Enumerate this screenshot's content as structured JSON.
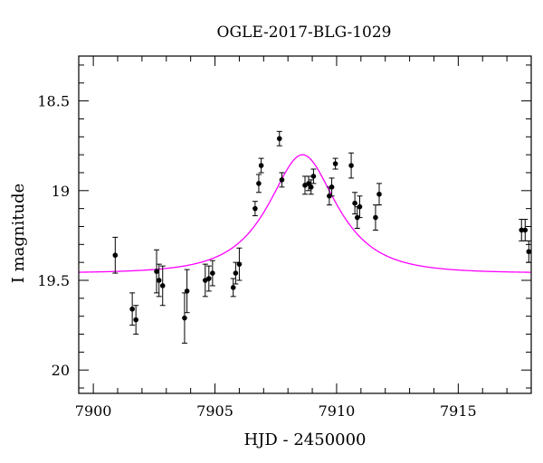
{
  "chart_data": {
    "type": "scatter",
    "title": "OGLE-2017-BLG-1029",
    "xlabel": "HJD - 2450000",
    "ylabel": "I magnitude",
    "xlim": [
      7899.4,
      7918
    ],
    "ylim": [
      18.25,
      20.13
    ],
    "y_inverted": true,
    "grid": false,
    "x_ticks": [
      7900,
      7905,
      7910,
      7915
    ],
    "x_tick_labels": [
      "7900",
      "7905",
      "7910",
      "7915"
    ],
    "y_ticks": [
      18.5,
      19,
      19.5,
      20
    ],
    "y_tick_labels": [
      "18.5",
      "19",
      "19.5",
      "20"
    ],
    "colors": {
      "data": "#000000",
      "model": "#ff00ff"
    },
    "series": [
      {
        "type": "errorbar",
        "x": [
          7900.9,
          7901.6,
          7901.75,
          7902.6,
          7902.7,
          7902.85,
          7903.75,
          7903.85,
          7904.6,
          7904.75,
          7904.9,
          7905.75,
          7905.85,
          7906.0,
          7906.65,
          7906.8,
          7906.9,
          7907.65,
          7907.75,
          7908.7,
          7908.85,
          7908.95,
          7909.05,
          7909.7,
          7909.8,
          7909.95,
          7910.6,
          7910.75,
          7910.85,
          7910.95,
          7911.6,
          7911.75,
          7917.6,
          7917.75,
          7917.9
        ],
        "y": [
          19.36,
          19.66,
          19.72,
          19.45,
          19.5,
          19.53,
          19.71,
          19.56,
          19.5,
          19.49,
          19.46,
          19.54,
          19.46,
          19.41,
          19.1,
          18.96,
          18.86,
          18.71,
          18.94,
          18.97,
          18.96,
          18.98,
          18.92,
          19.03,
          18.98,
          18.85,
          18.86,
          19.07,
          19.15,
          19.09,
          19.15,
          19.02,
          19.22,
          19.22,
          19.34
        ],
        "yerr": [
          0.1,
          0.09,
          0.08,
          0.12,
          0.09,
          0.11,
          0.14,
          0.12,
          0.09,
          0.07,
          0.07,
          0.05,
          0.06,
          0.09,
          0.04,
          0.05,
          0.04,
          0.04,
          0.04,
          0.05,
          0.04,
          0.04,
          0.04,
          0.05,
          0.05,
          0.03,
          0.07,
          0.06,
          0.06,
          0.06,
          0.07,
          0.06,
          0.06,
          0.06,
          0.06
        ]
      },
      {
        "type": "line",
        "model": "point-lens",
        "t0": 7908.6,
        "tE": 2.15,
        "u0": 0.62,
        "baseline_mag": 19.46
      }
    ]
  }
}
